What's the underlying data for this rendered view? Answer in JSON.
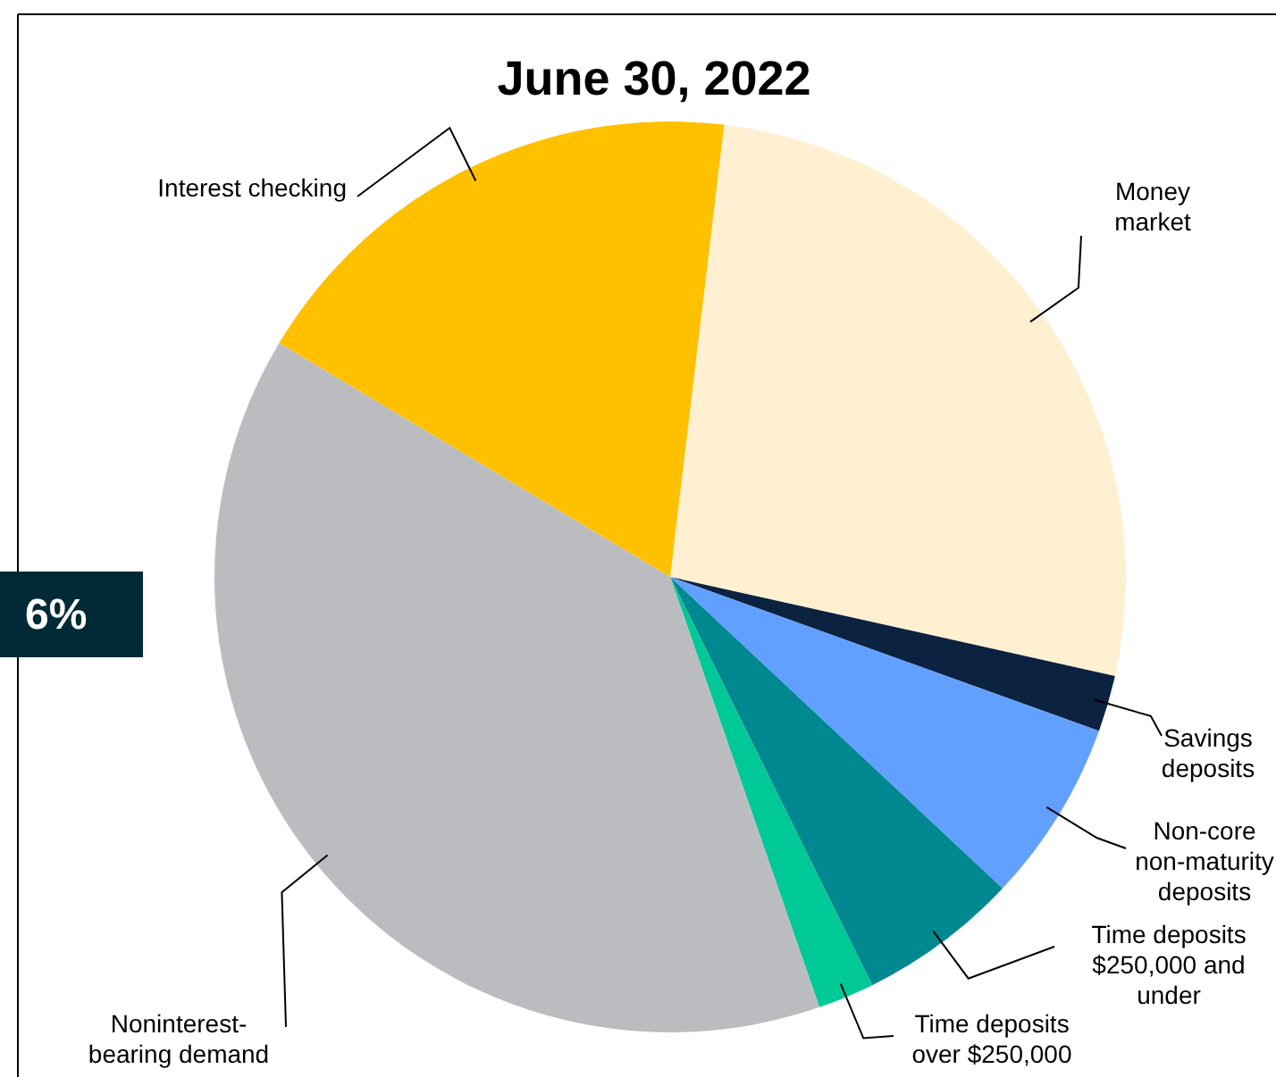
{
  "chart_data": {
    "type": "pie",
    "title": "June 30, 2022",
    "categories": [
      "Money market",
      "Savings deposits",
      "Non-core non-maturity deposits",
      "Time deposits $250,000 and under",
      "Time deposits over $250,000",
      "Noninterest-bearing demand",
      "Interest checking"
    ],
    "values": [
      26.6,
      2.0,
      6.5,
      5.7,
      2.0,
      38.9,
      18.3
    ],
    "colors": [
      "#fff0d2",
      "#0b2240",
      "#62a0ff",
      "#008890",
      "#00c896",
      "#bbbcc0",
      "#ffc000"
    ],
    "annotations": [
      "6%"
    ]
  }
}
